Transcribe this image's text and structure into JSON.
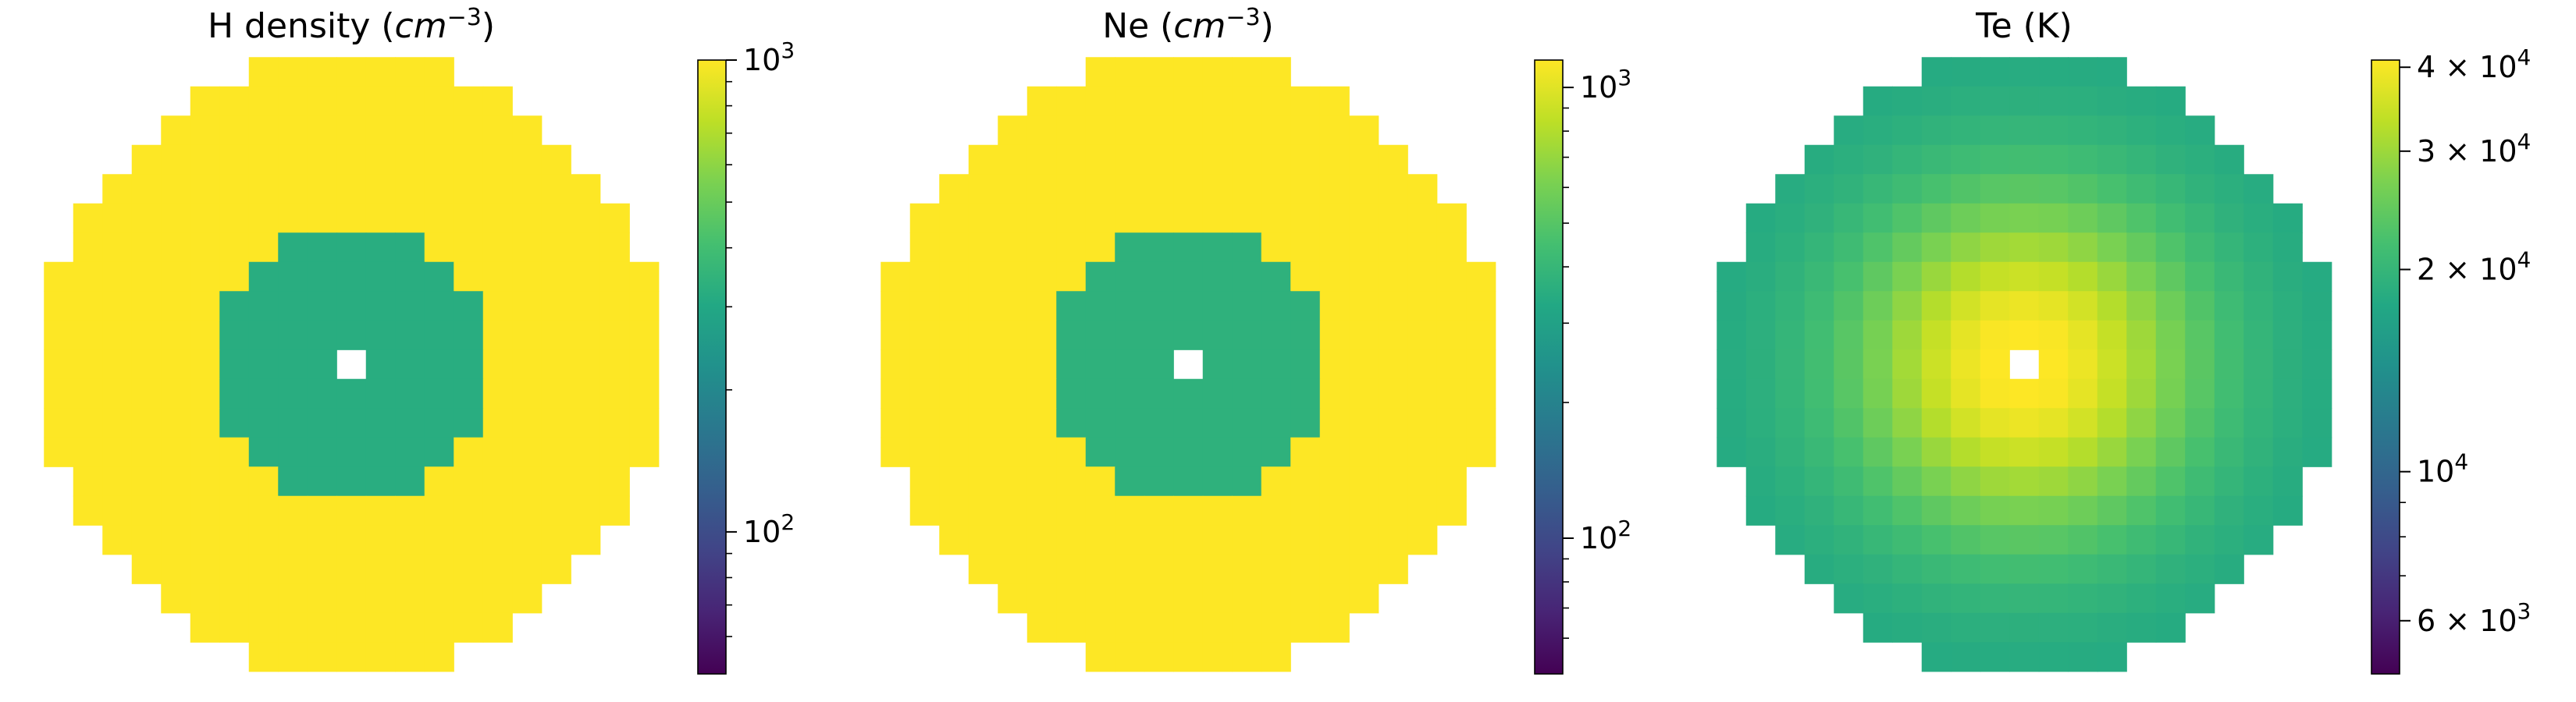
{
  "figure": {
    "panels": [
      {
        "title_main": "H density (",
        "title_italic": "cm",
        "title_sup": "−3",
        "title_close": ")"
      },
      {
        "title_main": "Ne (",
        "title_italic": "cm",
        "title_sup": "−3",
        "title_close": ")"
      },
      {
        "title_main": "Te (K)",
        "title_italic": "",
        "title_sup": "",
        "title_close": ""
      }
    ]
  },
  "chart_data": [
    {
      "type": "heatmap",
      "title": "H density (cm^-3)",
      "xlabel": "",
      "ylabel": "",
      "colormap": "viridis",
      "color_scale": "log",
      "vlim": [
        50,
        1000
      ],
      "grid": false,
      "axes_visible": false,
      "map_model": {
        "kind": "rings",
        "outer_radius_cells": 10,
        "inner_radius_cells": 4.6
      },
      "values": {
        "outer": 1000,
        "inner": 320,
        "center": null
      },
      "colorbar_ticks": [
        {
          "value": 1000,
          "base": "10",
          "exp": "3"
        },
        {
          "value": 100,
          "base": "10",
          "exp": "2"
        }
      ]
    },
    {
      "type": "heatmap",
      "title": "Ne (cm^-3)",
      "xlabel": "",
      "ylabel": "",
      "colormap": "viridis",
      "color_scale": "log",
      "vlim": [
        50,
        1150
      ],
      "grid": false,
      "axes_visible": false,
      "map_model": {
        "kind": "rings",
        "outer_radius_cells": 10,
        "inner_radius_cells": 4.6
      },
      "values": {
        "outer": 1150,
        "inner": 370,
        "center": null
      },
      "colorbar_ticks": [
        {
          "value": 1000,
          "base": "10",
          "exp": "3"
        },
        {
          "value": 100,
          "base": "10",
          "exp": "2"
        }
      ]
    },
    {
      "type": "heatmap",
      "title": "Te (K)",
      "xlabel": "",
      "ylabel": "",
      "colormap": "viridis",
      "color_scale": "log",
      "vlim": [
        5000,
        41000
      ],
      "grid": false,
      "axes_visible": false,
      "map_model": {
        "kind": "radial",
        "outer_radius_cells": 10,
        "outer_value": 17500,
        "peak_value": 41000,
        "falloff_cells": 4.2,
        "center": null
      },
      "colorbar_ticks": [
        {
          "value": 40000,
          "base": "4 × 10",
          "exp": "4"
        },
        {
          "value": 30000,
          "base": "3 × 10",
          "exp": "4"
        },
        {
          "value": 20000,
          "base": "2 × 10",
          "exp": "4"
        },
        {
          "value": 10000,
          "base": "10",
          "exp": "4"
        },
        {
          "value": 6000,
          "base": "6 × 10",
          "exp": "3"
        }
      ]
    }
  ]
}
